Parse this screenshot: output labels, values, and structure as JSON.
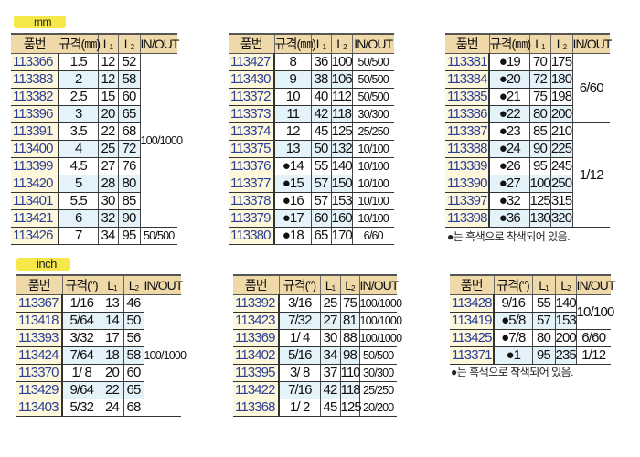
{
  "labels": {
    "mm": "mm",
    "inch": "inch"
  },
  "note": "●는 흑색으로 착색되어 있음.",
  "tables": [
    {
      "headers": [
        "품번",
        "규격(㎜)",
        "L1",
        "L2",
        "IN/OUT"
      ],
      "rows": [
        {
          "part": "113366",
          "spec": "1.5",
          "l1": "12",
          "l2": "52"
        },
        {
          "part": "113383",
          "spec": "2",
          "l1": "12",
          "l2": "58"
        },
        {
          "part": "113382",
          "spec": "2.5",
          "l1": "15",
          "l2": "60"
        },
        {
          "part": "113396",
          "spec": "3",
          "l1": "20",
          "l2": "65"
        },
        {
          "part": "113391",
          "spec": "3.5",
          "l1": "22",
          "l2": "68"
        },
        {
          "part": "113400",
          "spec": "4",
          "l1": "25",
          "l2": "72"
        },
        {
          "part": "113399",
          "spec": "4.5",
          "l1": "27",
          "l2": "76"
        },
        {
          "part": "113420",
          "spec": "5",
          "l1": "28",
          "l2": "80"
        },
        {
          "part": "113401",
          "spec": "5.5",
          "l1": "30",
          "l2": "85"
        },
        {
          "part": "113421",
          "spec": "6",
          "l1": "32",
          "l2": "90"
        },
        {
          "part": "113426",
          "spec": "7",
          "l1": "34",
          "l2": "95"
        }
      ],
      "inout": [
        {
          "value": "100/1000",
          "rows": 10
        },
        {
          "value": "50/500",
          "rows": 1
        }
      ]
    },
    {
      "headers": [
        "품번",
        "규격(㎜)",
        "L1",
        "L2",
        "IN/OUT"
      ],
      "rows": [
        {
          "part": "113427",
          "spec": "8",
          "l1": "36",
          "l2": "100"
        },
        {
          "part": "113430",
          "spec": "9",
          "l1": "38",
          "l2": "106"
        },
        {
          "part": "113372",
          "spec": "10",
          "l1": "40",
          "l2": "112"
        },
        {
          "part": "113373",
          "spec": "11",
          "l1": "42",
          "l2": "118"
        },
        {
          "part": "113374",
          "spec": "12",
          "l1": "45",
          "l2": "125"
        },
        {
          "part": "113375",
          "spec": "13",
          "l1": "50",
          "l2": "132"
        },
        {
          "part": "113376",
          "spec": "●14",
          "l1": "55",
          "l2": "140"
        },
        {
          "part": "113377",
          "spec": "●15",
          "l1": "57",
          "l2": "150"
        },
        {
          "part": "113378",
          "spec": "●16",
          "l1": "57",
          "l2": "153"
        },
        {
          "part": "113379",
          "spec": "●17",
          "l1": "60",
          "l2": "160"
        },
        {
          "part": "113380",
          "spec": "●18",
          "l1": "65",
          "l2": "170"
        }
      ],
      "inout": [
        {
          "value": "50/500",
          "rows": 1
        },
        {
          "value": "50/500",
          "rows": 1
        },
        {
          "value": "50/500",
          "rows": 1
        },
        {
          "value": "30/300",
          "rows": 1
        },
        {
          "value": "25/250",
          "rows": 1
        },
        {
          "value": "10/100",
          "rows": 1
        },
        {
          "value": "10/100",
          "rows": 1
        },
        {
          "value": "10/100",
          "rows": 1
        },
        {
          "value": "10/100",
          "rows": 1
        },
        {
          "value": "10/100",
          "rows": 1
        },
        {
          "value": "6/60",
          "rows": 1
        }
      ]
    },
    {
      "headers": [
        "품번",
        "규격(㎜)",
        "L1",
        "L2",
        "IN/OUT"
      ],
      "rows": [
        {
          "part": "113381",
          "spec": "●19",
          "l1": "70",
          "l2": "175"
        },
        {
          "part": "113384",
          "spec": "●20",
          "l1": "72",
          "l2": "180"
        },
        {
          "part": "113385",
          "spec": "●21",
          "l1": "75",
          "l2": "198"
        },
        {
          "part": "113386",
          "spec": "●22",
          "l1": "80",
          "l2": "200"
        },
        {
          "part": "113387",
          "spec": "●23",
          "l1": "85",
          "l2": "210"
        },
        {
          "part": "113388",
          "spec": "●24",
          "l1": "90",
          "l2": "225"
        },
        {
          "part": "113389",
          "spec": "●26",
          "l1": "95",
          "l2": "245"
        },
        {
          "part": "113390",
          "spec": "●27",
          "l1": "100",
          "l2": "250"
        },
        {
          "part": "113397",
          "spec": "●32",
          "l1": "125",
          "l2": "315"
        },
        {
          "part": "113398",
          "spec": "●36",
          "l1": "130",
          "l2": "320"
        }
      ],
      "inout": [
        {
          "value": "6/60",
          "rows": 4
        },
        {
          "value": "1/12",
          "rows": 6
        }
      ]
    },
    {
      "headers": [
        "품번",
        "규격(″)",
        "L1",
        "L2",
        "IN/OUT"
      ],
      "rows": [
        {
          "part": "113367",
          "spec": "1/16",
          "l1": "13",
          "l2": "46"
        },
        {
          "part": "113418",
          "spec": "5/64",
          "l1": "14",
          "l2": "50"
        },
        {
          "part": "113393",
          "spec": "3/32",
          "l1": "17",
          "l2": "56"
        },
        {
          "part": "113424",
          "spec": "7/64",
          "l1": "18",
          "l2": "58"
        },
        {
          "part": "113370",
          "spec": "1/ 8",
          "l1": "20",
          "l2": "60"
        },
        {
          "part": "113429",
          "spec": "9/64",
          "l1": "22",
          "l2": "65"
        },
        {
          "part": "113403",
          "spec": "5/32",
          "l1": "24",
          "l2": "68"
        }
      ],
      "inout": [
        {
          "value": "100/1000",
          "rows": 7
        }
      ]
    },
    {
      "headers": [
        "품번",
        "규격(″)",
        "L1",
        "L2",
        "IN/OUT"
      ],
      "rows": [
        {
          "part": "113392",
          "spec": "3/16",
          "l1": "25",
          "l2": "75"
        },
        {
          "part": "113423",
          "spec": "7/32",
          "l1": "27",
          "l2": "81"
        },
        {
          "part": "113369",
          "spec": "1/ 4",
          "l1": "30",
          "l2": "88"
        },
        {
          "part": "113402",
          "spec": "5/16",
          "l1": "34",
          "l2": "98"
        },
        {
          "part": "113395",
          "spec": "3/ 8",
          "l1": "37",
          "l2": "110"
        },
        {
          "part": "113422",
          "spec": "7/16",
          "l1": "42",
          "l2": "118"
        },
        {
          "part": "113368",
          "spec": "1/ 2",
          "l1": "45",
          "l2": "125"
        }
      ],
      "inout": [
        {
          "value": "100/1000",
          "rows": 1
        },
        {
          "value": "100/1000",
          "rows": 1
        },
        {
          "value": "100/1000",
          "rows": 1
        },
        {
          "value": "50/500",
          "rows": 1
        },
        {
          "value": "30/300",
          "rows": 1
        },
        {
          "value": "25/250",
          "rows": 1
        },
        {
          "value": "20/200",
          "rows": 1
        }
      ]
    },
    {
      "headers": [
        "품번",
        "규격(″)",
        "L1",
        "L2",
        "IN/OUT"
      ],
      "rows": [
        {
          "part": "113428",
          "spec": "9/16",
          "l1": "55",
          "l2": "140"
        },
        {
          "part": "113419",
          "spec": "●5/8",
          "l1": "57",
          "l2": "153"
        },
        {
          "part": "113425",
          "spec": "●7/8",
          "l1": "80",
          "l2": "200"
        },
        {
          "part": "113371",
          "spec": "●1",
          "l1": "95",
          "l2": "235"
        }
      ],
      "inout": [
        {
          "value": "10/100",
          "rows": 2
        },
        {
          "value": "6/60",
          "rows": 1
        },
        {
          "value": "1/12",
          "rows": 1
        }
      ]
    }
  ]
}
